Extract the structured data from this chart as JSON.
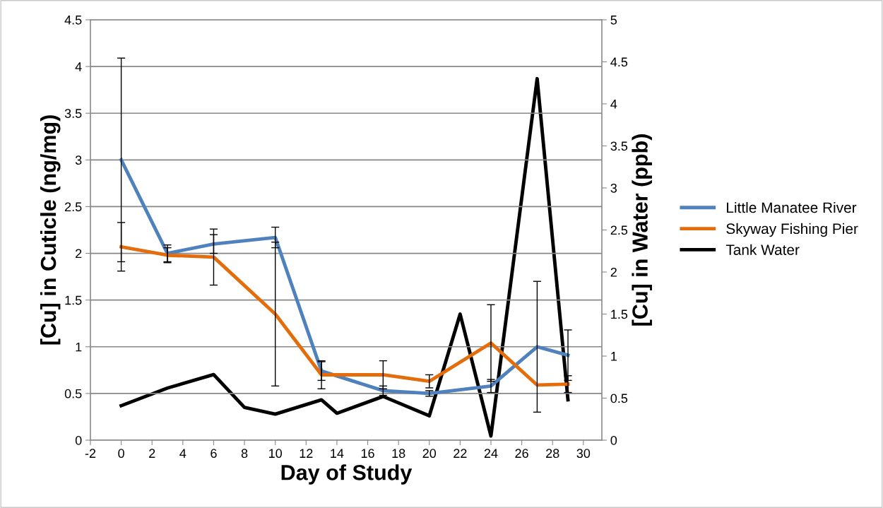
{
  "chart_data": {
    "type": "line",
    "xlabel": "Day of Study",
    "ylabel": "[Cu] in Cuticle (ng/mg)",
    "y2label": "[Cu] in Water (ppb)",
    "xlim": [
      -2,
      31.2
    ],
    "xticks": [
      -2,
      0,
      2,
      4,
      6,
      8,
      10,
      12,
      14,
      16,
      18,
      20,
      22,
      24,
      26,
      28,
      30
    ],
    "ylim": [
      0,
      4.5
    ],
    "yticks": [
      0,
      0.5,
      1,
      1.5,
      2,
      2.5,
      3,
      3.5,
      4,
      4.5
    ],
    "y2lim": [
      0,
      5
    ],
    "y2ticks": [
      0,
      0.5,
      1,
      1.5,
      2,
      2.5,
      3,
      3.5,
      4,
      4.5,
      5
    ],
    "grid": "y",
    "legend": "right",
    "marker": "none",
    "line_style": "solid",
    "series": [
      {
        "name": "Little Manatee River",
        "color": "#4f81bd",
        "x": [
          0,
          3,
          6,
          10,
          13,
          17,
          20,
          24,
          27,
          29
        ],
        "values": [
          3.0,
          2.0,
          2.1,
          2.17,
          0.74,
          0.53,
          0.5,
          0.58,
          1.0,
          0.91
        ],
        "errors": [
          1.09,
          0.09,
          0.1,
          0.11,
          0.1,
          0.05,
          0.03,
          0.07,
          0.7,
          0.27
        ]
      },
      {
        "name": "Skyway Fishing Pier",
        "color": "#e46c0a",
        "x": [
          0,
          3,
          6,
          10,
          13,
          17,
          20,
          24,
          27,
          29
        ],
        "values": [
          2.07,
          1.98,
          1.96,
          1.35,
          0.7,
          0.7,
          0.63,
          1.04,
          0.59,
          0.6
        ],
        "errors": [
          0.26,
          0.08,
          0.3,
          0.77,
          0.15,
          0.15,
          0.07,
          0.41,
          null,
          0.09
        ]
      },
      {
        "name": "Tank Water",
        "color": "#000000",
        "axis": "y2",
        "x": [
          0,
          3,
          6,
          8,
          10,
          13,
          14,
          17,
          20,
          22,
          24,
          27,
          29
        ],
        "values": [
          0.41,
          0.62,
          0.78,
          0.39,
          0.31,
          0.48,
          0.32,
          0.52,
          0.29,
          1.5,
          0.05,
          4.3,
          0.48
        ]
      }
    ]
  }
}
